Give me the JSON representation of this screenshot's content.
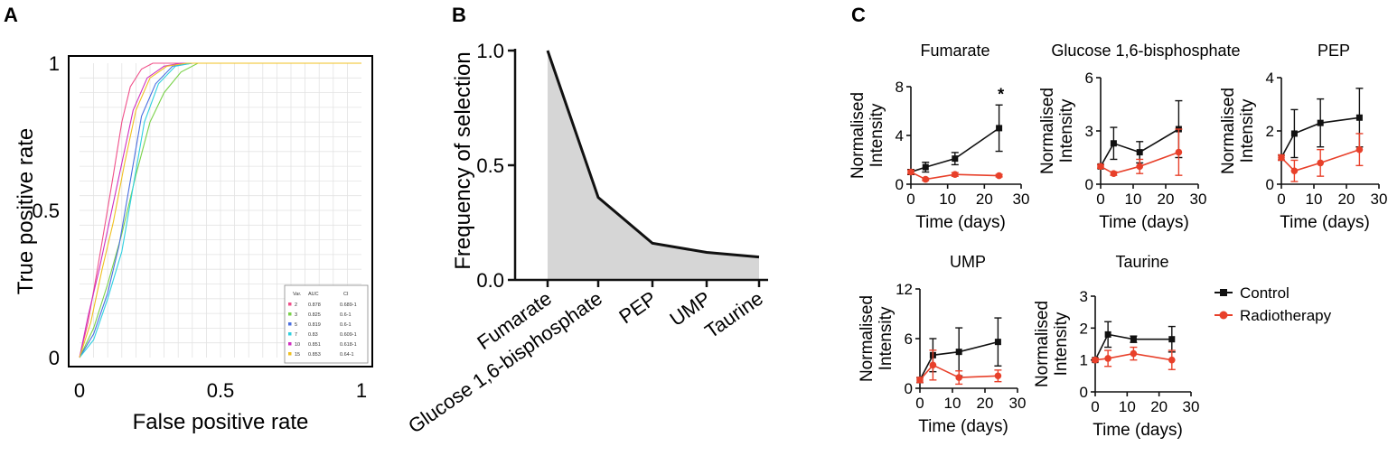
{
  "panels": {
    "a": "A",
    "b": "B",
    "c": "C"
  },
  "colors": {
    "control": "#111111",
    "radiotherapy": "#e8402a",
    "area": "#d6d6d6"
  },
  "chart_data": [
    {
      "id": "A",
      "type": "line",
      "title": "",
      "xlabel": "False positive rate",
      "ylabel": "True positive rate",
      "xlim": [
        0,
        1
      ],
      "ylim": [
        0,
        1
      ],
      "xticks": [
        "0",
        "0.5",
        "1"
      ],
      "yticks": [
        "0",
        "0.5",
        "1"
      ],
      "grid": true,
      "legend": {
        "position": "bottom-right",
        "headers": [
          "Var.",
          "AUC",
          "CI"
        ],
        "rows": [
          {
            "var": "2",
            "auc": "0.878",
            "ci": "0.689-1",
            "color": "#f0508a"
          },
          {
            "var": "3",
            "auc": "0.825",
            "ci": "0.6-1",
            "color": "#7ad24a"
          },
          {
            "var": "5",
            "auc": "0.819",
            "ci": "0.6-1",
            "color": "#4a6fe0"
          },
          {
            "var": "7",
            "auc": "0.83",
            "ci": "0.609-1",
            "color": "#30d0e0"
          },
          {
            "var": "10",
            "auc": "0.851",
            "ci": "0.618-1",
            "color": "#d030c0"
          },
          {
            "var": "15",
            "auc": "0.853",
            "ci": "0.64-1",
            "color": "#f0c020"
          }
        ]
      },
      "series": [
        {
          "name": "2",
          "x": [
            0,
            0.03,
            0.06,
            0.09,
            0.12,
            0.15,
            0.18,
            0.22,
            0.26,
            0.3,
            0.35,
            0.5,
            1
          ],
          "y": [
            0,
            0.12,
            0.28,
            0.45,
            0.62,
            0.8,
            0.92,
            0.98,
            1,
            1,
            1,
            1,
            1
          ]
        },
        {
          "name": "3",
          "x": [
            0,
            0.05,
            0.1,
            0.15,
            0.2,
            0.25,
            0.3,
            0.36,
            0.42,
            0.5,
            1
          ],
          "y": [
            0,
            0.1,
            0.25,
            0.42,
            0.62,
            0.8,
            0.9,
            0.97,
            1,
            1,
            1
          ]
        },
        {
          "name": "5",
          "x": [
            0,
            0.05,
            0.1,
            0.14,
            0.18,
            0.22,
            0.27,
            0.33,
            0.4,
            1
          ],
          "y": [
            0,
            0.08,
            0.22,
            0.38,
            0.6,
            0.82,
            0.93,
            0.99,
            1,
            1
          ]
        },
        {
          "name": "7",
          "x": [
            0,
            0.05,
            0.1,
            0.15,
            0.19,
            0.23,
            0.28,
            0.34,
            0.4,
            1
          ],
          "y": [
            0,
            0.06,
            0.2,
            0.36,
            0.58,
            0.8,
            0.93,
            0.99,
            1,
            1
          ]
        },
        {
          "name": "10",
          "x": [
            0,
            0.03,
            0.07,
            0.11,
            0.15,
            0.19,
            0.24,
            0.3,
            0.36,
            1
          ],
          "y": [
            0,
            0.14,
            0.3,
            0.48,
            0.66,
            0.84,
            0.95,
            0.99,
            1,
            1
          ]
        },
        {
          "name": "15",
          "x": [
            0,
            0.04,
            0.08,
            0.12,
            0.16,
            0.2,
            0.25,
            0.31,
            0.38,
            1
          ],
          "y": [
            0,
            0.12,
            0.3,
            0.46,
            0.66,
            0.84,
            0.95,
            0.99,
            1,
            1
          ]
        }
      ]
    },
    {
      "id": "B",
      "type": "area",
      "title": "",
      "xlabel": "",
      "ylabel": "Frequency of selection",
      "categories": [
        "Fumarate",
        "Glucose 1,6-bisphosphate",
        "PEP",
        "UMP",
        "Taurine"
      ],
      "values": [
        1.0,
        0.36,
        0.16,
        0.12,
        0.1
      ],
      "ylim": [
        0,
        1.0
      ],
      "yticks": [
        "0.0",
        "0.5",
        "1.0"
      ]
    },
    {
      "id": "C",
      "type": "line",
      "xlabel": "Time (days)",
      "ylabel_lines": [
        "Normalised",
        "Intensity"
      ],
      "legend": {
        "position": "right",
        "entries": [
          "Control",
          "Radiotherapy"
        ]
      },
      "x_ticks": [
        "0",
        "10",
        "20",
        "30"
      ],
      "xlim": [
        0,
        30
      ],
      "subplots": [
        {
          "title": "Fumarate",
          "ylim": [
            0,
            8
          ],
          "yticks": [
            "0",
            "4",
            "8"
          ],
          "annotation": "*",
          "series": [
            {
              "name": "Control",
              "x": [
                0,
                4,
                12,
                24
              ],
              "y": [
                1.0,
                1.4,
                2.1,
                4.6
              ],
              "err": [
                0.2,
                0.4,
                0.5,
                1.9
              ]
            },
            {
              "name": "Radiotherapy",
              "x": [
                0,
                4,
                12,
                24
              ],
              "y": [
                1.0,
                0.4,
                0.8,
                0.7
              ],
              "err": [
                0.15,
                0.1,
                0.15,
                0.1
              ]
            }
          ]
        },
        {
          "title": "Glucose 1,6-bisphosphate",
          "ylim": [
            0,
            6
          ],
          "yticks": [
            "0",
            "3",
            "6"
          ],
          "series": [
            {
              "name": "Control",
              "x": [
                0,
                4,
                12,
                24
              ],
              "y": [
                1.0,
                2.3,
                1.8,
                3.1
              ],
              "err": [
                0.1,
                0.9,
                0.6,
                1.6
              ]
            },
            {
              "name": "Radiotherapy",
              "x": [
                0,
                4,
                12,
                24
              ],
              "y": [
                1.0,
                0.6,
                1.0,
                1.8
              ],
              "err": [
                0.1,
                0.1,
                0.4,
                1.3
              ]
            }
          ]
        },
        {
          "title": "PEP",
          "ylim": [
            0,
            4
          ],
          "yticks": [
            "0",
            "2",
            "4"
          ],
          "series": [
            {
              "name": "Control",
              "x": [
                0,
                4,
                12,
                24
              ],
              "y": [
                1.0,
                1.9,
                2.3,
                2.5
              ],
              "err": [
                0.1,
                0.9,
                0.9,
                1.1
              ]
            },
            {
              "name": "Radiotherapy",
              "x": [
                0,
                4,
                12,
                24
              ],
              "y": [
                1.0,
                0.5,
                0.8,
                1.3
              ],
              "err": [
                0.1,
                0.4,
                0.5,
                0.6
              ]
            }
          ]
        },
        {
          "title": "UMP",
          "ylim": [
            0,
            12
          ],
          "yticks": [
            "0",
            "6",
            "12"
          ],
          "series": [
            {
              "name": "Control",
              "x": [
                0,
                4,
                12,
                24
              ],
              "y": [
                1.0,
                4.0,
                4.4,
                5.6
              ],
              "err": [
                0.3,
                2.0,
                2.9,
                2.9
              ]
            },
            {
              "name": "Radiotherapy",
              "x": [
                0,
                4,
                12,
                24
              ],
              "y": [
                1.0,
                2.8,
                1.3,
                1.5
              ],
              "err": [
                0.3,
                1.8,
                0.8,
                0.7
              ]
            }
          ]
        },
        {
          "title": "Taurine",
          "ylim": [
            0,
            3
          ],
          "yticks": [
            "0",
            "1",
            "2",
            "3"
          ],
          "series": [
            {
              "name": "Control",
              "x": [
                0,
                4,
                12,
                24
              ],
              "y": [
                1.0,
                1.8,
                1.65,
                1.65
              ],
              "err": [
                0.05,
                0.4,
                0.1,
                0.4
              ]
            },
            {
              "name": "Radiotherapy",
              "x": [
                0,
                4,
                12,
                24
              ],
              "y": [
                1.0,
                1.05,
                1.2,
                1.0
              ],
              "err": [
                0.05,
                0.25,
                0.2,
                0.3
              ]
            }
          ]
        }
      ]
    }
  ]
}
